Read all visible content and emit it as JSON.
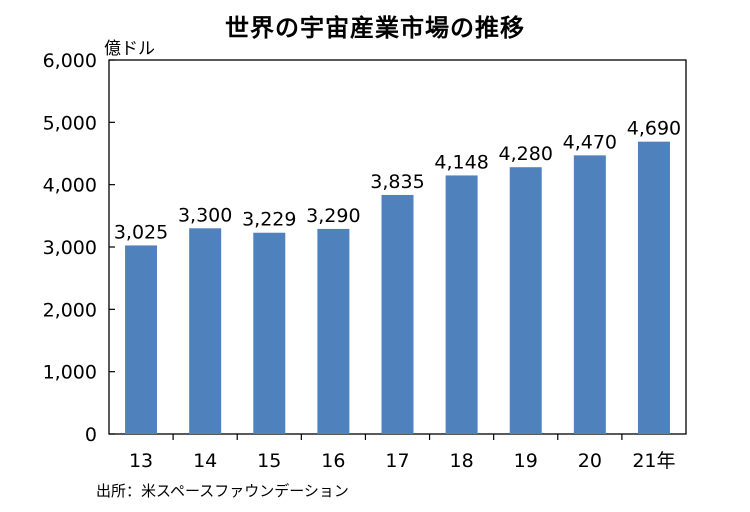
{
  "chart_data": {
    "type": "bar",
    "title": "世界の宇宙産業市場の推移",
    "ylabel": "億ドル",
    "xlabel": "",
    "categories": [
      "13",
      "14",
      "15",
      "16",
      "17",
      "18",
      "19",
      "20",
      "21年"
    ],
    "values": [
      3025,
      3300,
      3229,
      3290,
      3835,
      4148,
      4280,
      4470,
      4690
    ],
    "value_labels": [
      "3,025",
      "3,300",
      "3,229",
      "3,290",
      "3,835",
      "4,148",
      "4,280",
      "4,470",
      "4,690"
    ],
    "ylim": [
      0,
      6000
    ],
    "yticks": [
      0,
      1000,
      2000,
      3000,
      4000,
      5000,
      6000
    ],
    "ytick_labels": [
      "0",
      "1,000",
      "2,000",
      "3,000",
      "4,000",
      "5,000",
      "6,000"
    ],
    "grid": false,
    "legend": "none",
    "bar_color": "#4f81bd",
    "source": "出所：米スペースファウンデーション"
  }
}
